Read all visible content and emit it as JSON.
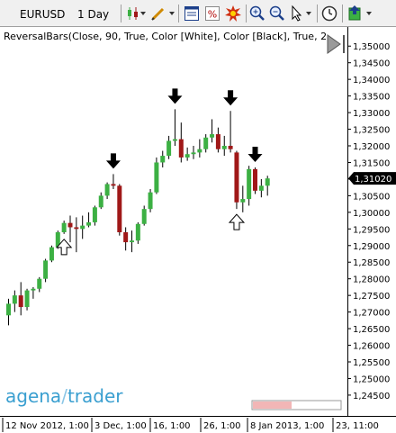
{
  "toolbar": {
    "symbol": "EURUSD",
    "timeframe": "1 Day",
    "icons": [
      "candle-type-icon",
      "drawing-pencil-icon",
      "properties-window-icon",
      "percent-icon",
      "indicator-burst-icon",
      "zoom-in-icon",
      "zoom-out-icon",
      "cursor-arrow-icon",
      "clock-icon",
      "export-icon"
    ]
  },
  "indicator_label": "ReversalBars(Close, 90, True, Color [White], Color [Black], True, 2",
  "price_axis": {
    "labels": [
      "1,35000",
      "1,34500",
      "1,34000",
      "1,33500",
      "1,33000",
      "1,32500",
      "1,32000",
      "1,31500",
      "1,31000",
      "1,30500",
      "1,30000",
      "1,29500",
      "1,29000",
      "1,28500",
      "1,28000",
      "1,27500",
      "1,27000",
      "1,26500",
      "1,26000",
      "1,25500",
      "1,25000",
      "1,24500"
    ],
    "current_price": "1,31020"
  },
  "time_axis": {
    "labels": [
      "12 Nov 2012, 1:00",
      "3 Dec, 1:00",
      "16, 1:00",
      "26, 1:00",
      "8 Jan 2013, 1:00",
      "23, 11:00"
    ]
  },
  "logo": {
    "part1": "agena",
    "slash": "/",
    "part2": "trader"
  },
  "colors": {
    "bull": "#3cb043",
    "bear": "#a01818",
    "current_price_bg": "#000000",
    "logo_blue": "#3a9fd0"
  },
  "chart_data": {
    "type": "candlestick",
    "y_range": [
      1.242,
      1.3525
    ],
    "candles": [
      {
        "o": 1.269,
        "h": 1.274,
        "l": 1.266,
        "c": 1.2725
      },
      {
        "o": 1.2725,
        "h": 1.2765,
        "l": 1.27,
        "c": 1.275
      },
      {
        "o": 1.275,
        "h": 1.279,
        "l": 1.269,
        "c": 1.2715
      },
      {
        "o": 1.2715,
        "h": 1.277,
        "l": 1.2705,
        "c": 1.2765
      },
      {
        "o": 1.2765,
        "h": 1.2775,
        "l": 1.274,
        "c": 1.277
      },
      {
        "o": 1.277,
        "h": 1.2805,
        "l": 1.276,
        "c": 1.28
      },
      {
        "o": 1.28,
        "h": 1.286,
        "l": 1.279,
        "c": 1.2855
      },
      {
        "o": 1.2855,
        "h": 1.29,
        "l": 1.285,
        "c": 1.2895
      },
      {
        "o": 1.2895,
        "h": 1.2945,
        "l": 1.289,
        "c": 1.294
      },
      {
        "o": 1.294,
        "h": 1.2975,
        "l": 1.2935,
        "c": 1.2968
      },
      {
        "o": 1.2968,
        "h": 1.299,
        "l": 1.291,
        "c": 1.2955
      },
      {
        "o": 1.2955,
        "h": 1.2985,
        "l": 1.288,
        "c": 1.295
      },
      {
        "o": 1.295,
        "h": 1.299,
        "l": 1.292,
        "c": 1.296
      },
      {
        "o": 1.296,
        "h": 1.3,
        "l": 1.2955,
        "c": 1.297
      },
      {
        "o": 1.297,
        "h": 1.302,
        "l": 1.296,
        "c": 1.3015
      },
      {
        "o": 1.3015,
        "h": 1.306,
        "l": 1.301,
        "c": 1.305
      },
      {
        "o": 1.305,
        "h": 1.309,
        "l": 1.304,
        "c": 1.3085
      },
      {
        "o": 1.3085,
        "h": 1.3115,
        "l": 1.307,
        "c": 1.308
      },
      {
        "o": 1.308,
        "h": 1.3085,
        "l": 1.293,
        "c": 1.294
      },
      {
        "o": 1.294,
        "h": 1.2955,
        "l": 1.2885,
        "c": 1.291
      },
      {
        "o": 1.291,
        "h": 1.2945,
        "l": 1.288,
        "c": 1.2915
      },
      {
        "o": 1.2915,
        "h": 1.297,
        "l": 1.2905,
        "c": 1.2965
      },
      {
        "o": 1.2965,
        "h": 1.302,
        "l": 1.296,
        "c": 1.301
      },
      {
        "o": 1.301,
        "h": 1.307,
        "l": 1.3,
        "c": 1.306
      },
      {
        "o": 1.306,
        "h": 1.3165,
        "l": 1.3055,
        "c": 1.315
      },
      {
        "o": 1.315,
        "h": 1.3185,
        "l": 1.3135,
        "c": 1.317
      },
      {
        "o": 1.317,
        "h": 1.323,
        "l": 1.316,
        "c": 1.3215
      },
      {
        "o": 1.3215,
        "h": 1.331,
        "l": 1.32,
        "c": 1.322
      },
      {
        "o": 1.322,
        "h": 1.327,
        "l": 1.315,
        "c": 1.3165
      },
      {
        "o": 1.3165,
        "h": 1.3195,
        "l": 1.3155,
        "c": 1.3175
      },
      {
        "o": 1.3175,
        "h": 1.32,
        "l": 1.316,
        "c": 1.318
      },
      {
        "o": 1.318,
        "h": 1.322,
        "l": 1.3165,
        "c": 1.319
      },
      {
        "o": 1.319,
        "h": 1.3235,
        "l": 1.318,
        "c": 1.3225
      },
      {
        "o": 1.3225,
        "h": 1.328,
        "l": 1.321,
        "c": 1.3235
      },
      {
        "o": 1.3235,
        "h": 1.3255,
        "l": 1.318,
        "c": 1.319
      },
      {
        "o": 1.319,
        "h": 1.323,
        "l": 1.317,
        "c": 1.32
      },
      {
        "o": 1.32,
        "h": 1.3305,
        "l": 1.318,
        "c": 1.319
      },
      {
        "o": 1.318,
        "h": 1.3185,
        "l": 1.301,
        "c": 1.303
      },
      {
        "o": 1.303,
        "h": 1.308,
        "l": 1.3,
        "c": 1.304
      },
      {
        "o": 1.304,
        "h": 1.314,
        "l": 1.302,
        "c": 1.313
      },
      {
        "o": 1.313,
        "h": 1.3135,
        "l": 1.3055,
        "c": 1.3065
      },
      {
        "o": 1.3065,
        "h": 1.31,
        "l": 1.3045,
        "c": 1.308
      },
      {
        "o": 1.308,
        "h": 1.311,
        "l": 1.305,
        "c": 1.3102
      }
    ],
    "reversal_markers": [
      {
        "index": 9,
        "direction": "up"
      },
      {
        "index": 17,
        "direction": "down"
      },
      {
        "index": 27,
        "direction": "down"
      },
      {
        "index": 36,
        "direction": "down"
      },
      {
        "index": 37,
        "direction": "up"
      },
      {
        "index": 40,
        "direction": "down"
      }
    ]
  }
}
